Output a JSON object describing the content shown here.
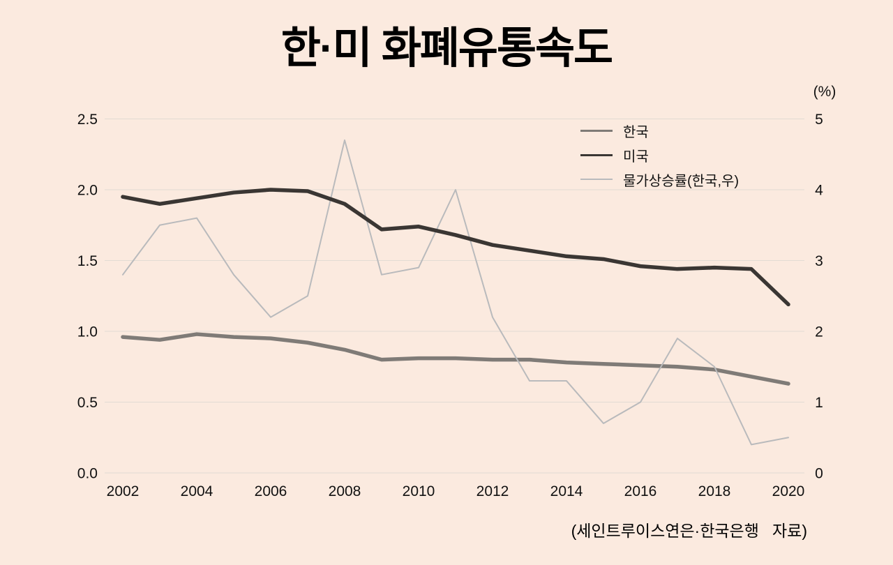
{
  "page": {
    "background": "#fbeadf"
  },
  "title": "한·미 화폐유통속도",
  "right_axis_unit": "(%)",
  "source_note": "(세인트루이스연은·한국은행   자료)",
  "legend": [
    {
      "label": "한국",
      "color": "#7f7b77",
      "thickness": 3
    },
    {
      "label": "미국",
      "color": "#3a3633",
      "thickness": 3
    },
    {
      "label": "물가상승률(한국,우)",
      "color": "#b9babc",
      "thickness": 2
    }
  ],
  "chart_data": {
    "type": "line",
    "title": "한·미 화폐유통속도",
    "x": [
      2002,
      2003,
      2004,
      2005,
      2006,
      2007,
      2008,
      2009,
      2010,
      2011,
      2012,
      2013,
      2014,
      2015,
      2016,
      2017,
      2018,
      2019,
      2020
    ],
    "x_tick_labels": [
      "2002",
      "2004",
      "2006",
      "2008",
      "2010",
      "2012",
      "2014",
      "2016",
      "2018",
      "2020"
    ],
    "x_ticks": [
      2002,
      2004,
      2006,
      2008,
      2010,
      2012,
      2014,
      2016,
      2018,
      2020
    ],
    "left_axis": {
      "ticks": [
        "0.0",
        "0.5",
        "1.0",
        "1.5",
        "2.0",
        "2.5"
      ],
      "range": [
        0,
        2.5
      ]
    },
    "right_axis": {
      "ticks": [
        "0",
        "1",
        "2",
        "3",
        "4",
        "5"
      ],
      "range": [
        0,
        5
      ],
      "unit": "(%)"
    },
    "grid": true,
    "legend_position": "top-right",
    "series": [
      {
        "name": "한국",
        "axis": "left",
        "color": "#7f7b77",
        "width": 5.5,
        "values": [
          0.96,
          0.94,
          0.98,
          0.96,
          0.95,
          0.92,
          0.87,
          0.8,
          0.81,
          0.81,
          0.8,
          0.8,
          0.78,
          0.77,
          0.76,
          0.75,
          0.73,
          0.68,
          0.63
        ]
      },
      {
        "name": "미국",
        "axis": "left",
        "color": "#3a3633",
        "width": 5.5,
        "values": [
          1.95,
          1.9,
          1.94,
          1.98,
          2.0,
          1.99,
          1.9,
          1.72,
          1.74,
          1.68,
          1.61,
          1.57,
          1.53,
          1.51,
          1.46,
          1.44,
          1.45,
          1.44,
          1.19
        ]
      },
      {
        "name": "물가상승률(한국,우)",
        "axis": "right",
        "color": "#b9babc",
        "width": 2,
        "values": [
          2.8,
          3.5,
          3.6,
          2.8,
          2.2,
          2.5,
          4.7,
          2.8,
          2.9,
          4.0,
          2.2,
          1.3,
          1.3,
          0.7,
          1.0,
          1.9,
          1.5,
          0.4,
          0.5
        ]
      }
    ],
    "source": "(세인트루이스연은·한국은행 자료)"
  }
}
